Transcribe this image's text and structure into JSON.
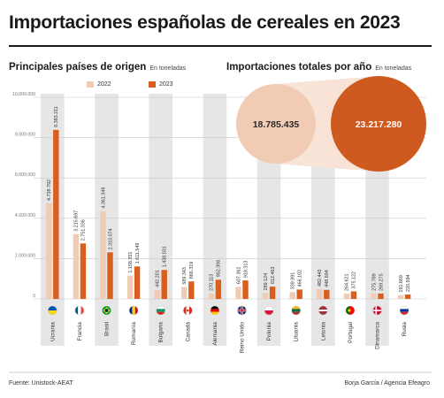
{
  "title": "Importaciones españolas de cereales en 2023",
  "left_panel": {
    "heading": "Principales países de origen",
    "unit": "En toneladas"
  },
  "right_panel": {
    "heading": "Importaciones totales por año",
    "unit": "En toneladas"
  },
  "legend": {
    "label_2022": "2022",
    "label_2023": "2023"
  },
  "footer": {
    "source": "Fuente: Unistock-AEAT",
    "credit": "Borja García / Agencia Efeagro"
  },
  "colors": {
    "y2022": "#f0cbb5",
    "y2023": "#d95f1e",
    "band": "#e6e6e6",
    "circle2022": "#f2cbb5",
    "circle2023": "#cf5a1f"
  },
  "chart_data": [
    {
      "type": "bar",
      "title": "Principales países de origen",
      "ylabel": "",
      "ylim": [
        0,
        10000000
      ],
      "yticks": [
        0,
        2000000,
        4000000,
        6000000,
        8000000,
        10000000
      ],
      "ytick_labels": [
        "0",
        "2.000.000",
        "4.000.000",
        "6.000.000",
        "8.000.000",
        "10.000.000"
      ],
      "grid": true,
      "categories": [
        "Ucrania",
        "Francia",
        "Brasil",
        "Rumanía",
        "Bulgaria",
        "Canadá",
        "Alemania",
        "Reino Unido",
        "Polonia",
        "Lituania",
        "Letonia",
        "Portugal",
        "Dinamarca",
        "Rusia"
      ],
      "flags": [
        "ucrania-flag-icon",
        "francia-flag-icon",
        "brasil-flag-icon",
        "rumania-flag-icon",
        "bulgaria-flag-icon",
        "canada-flag-icon",
        "alemania-flag-icon",
        "reino-unido-flag-icon",
        "polonia-flag-icon",
        "lituania-flag-icon",
        "letonia-flag-icon",
        "portugal-flag-icon",
        "dinamarca-flag-icon",
        "rusia-flag-icon"
      ],
      "series": [
        {
          "name": "2022",
          "values": [
            4738792,
            3215697,
            4361349,
            1158351,
            442201,
            589343,
            270113,
            607362,
            289124,
            339991,
            482445,
            264621,
            275789,
            191669
          ],
          "labels": [
            "4.738.792",
            "3.215.697",
            "4.361.349",
            "1.158.351",
            "442.201",
            "589.343",
            "270.113",
            "607.362",
            "289.124",
            "339.991",
            "482.445",
            "264.621",
            "275.789",
            "191.669"
          ]
        },
        {
          "name": "2023",
          "values": [
            8383211,
            2751336,
            2310074,
            1611549,
            1438031,
            866319,
            952306,
            918313,
            612463,
            466102,
            448694,
            375122,
            269275,
            220594
          ],
          "labels": [
            "8.383.211",
            "2.751.336",
            "2.310.074",
            "1.611.549",
            "1.438.031",
            "866.319",
            "952.306",
            "918.313",
            "612.463",
            "466.102",
            "448.694",
            "375.122",
            "269.275",
            "220.594"
          ]
        }
      ]
    },
    {
      "type": "bubble",
      "title": "Importaciones totales por año",
      "categories": [
        "2022",
        "2023"
      ],
      "values": [
        18785435,
        23217280
      ],
      "labels": [
        "18.785.435",
        "23.217.280"
      ]
    }
  ]
}
